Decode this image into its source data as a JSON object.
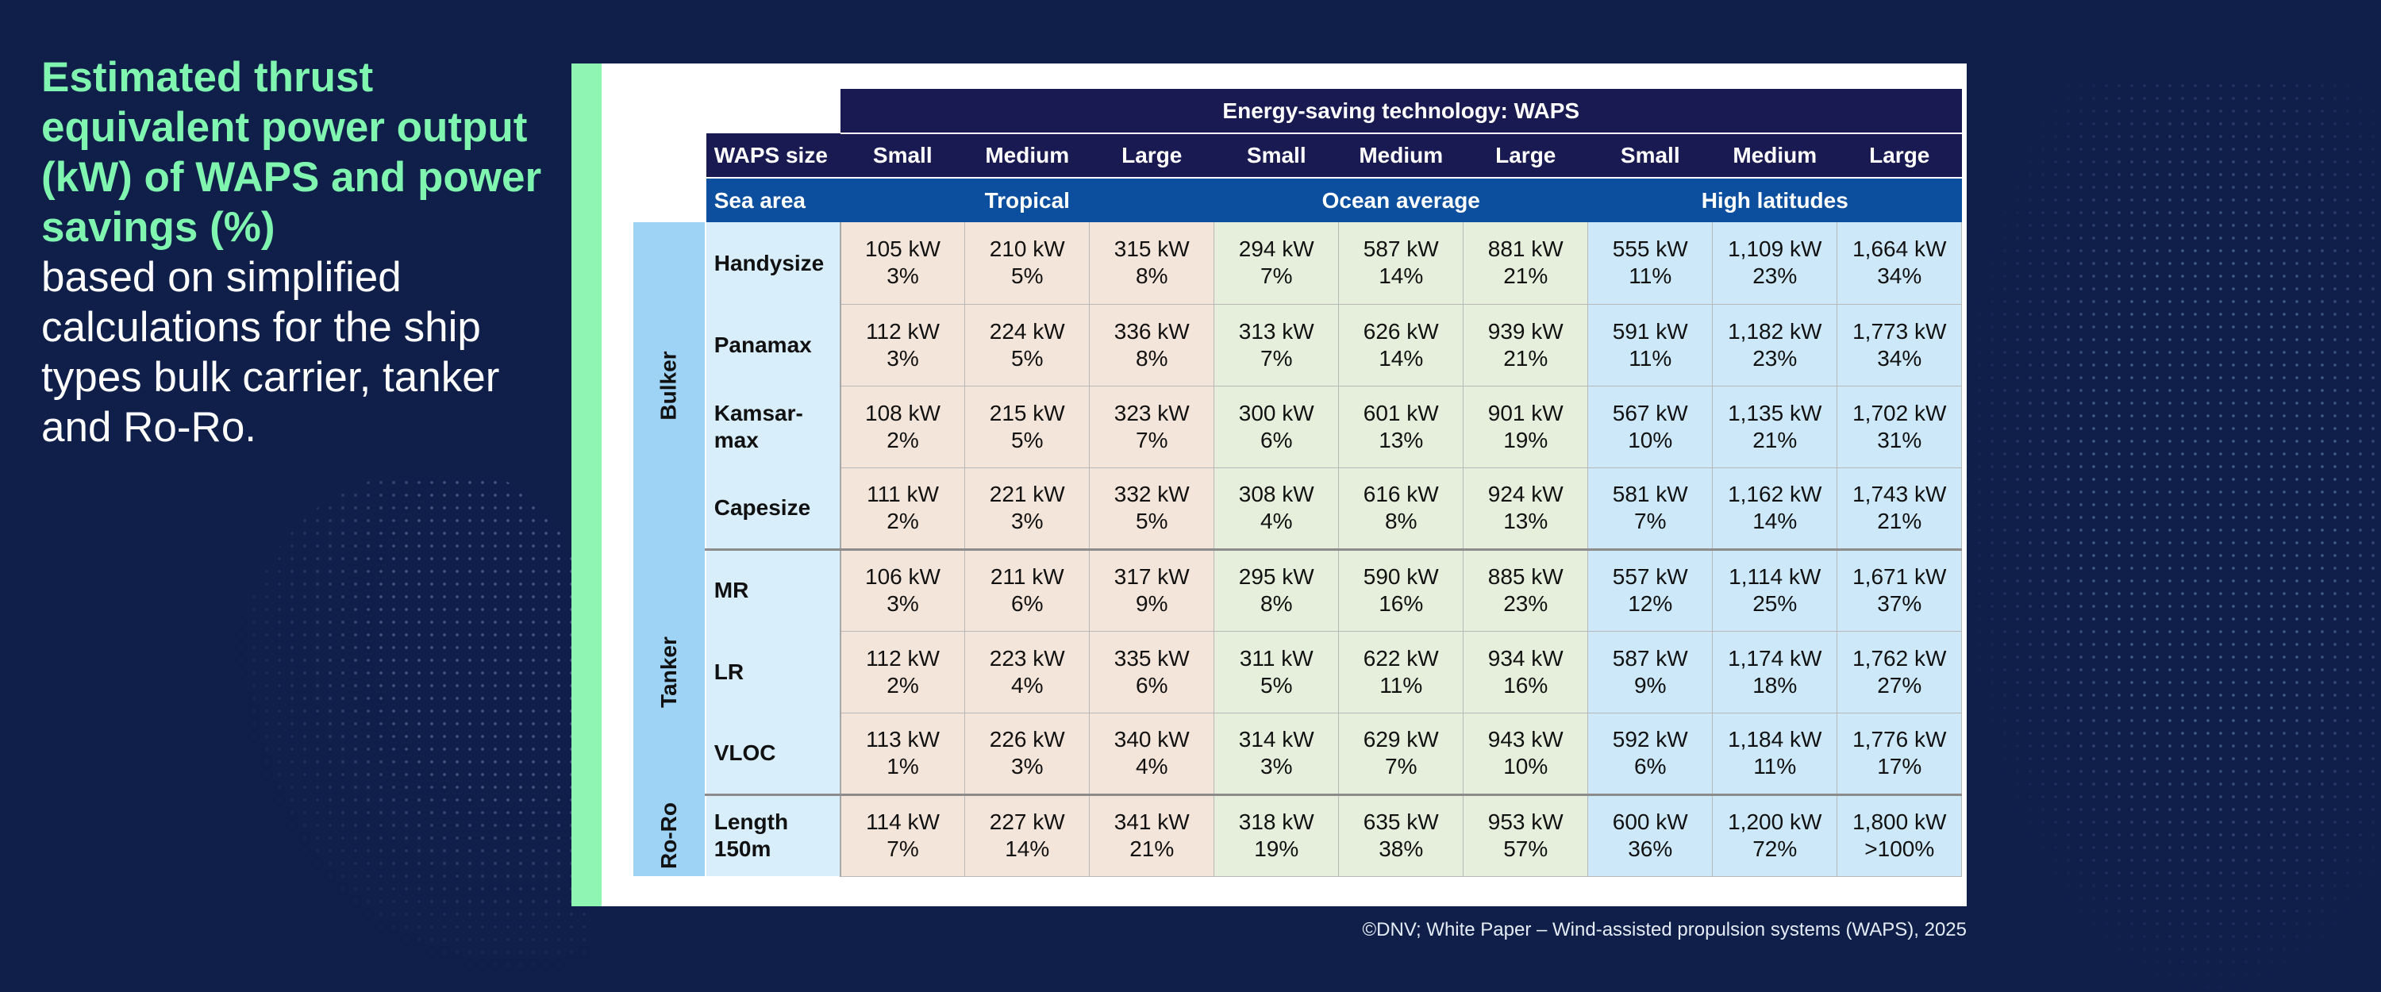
{
  "headline": {
    "highlight": "Estimated thrust equivalent power output (kW) of WAPS and power savings (%)",
    "rest": "based on simplified calculations for the ship types bulk carrier, tanker and Ro-Ro."
  },
  "table": {
    "tech_header": "Energy-saving technology: WAPS",
    "size_label": "WAPS size",
    "sizes": [
      "Small",
      "Medium",
      "Large",
      "Small",
      "Medium",
      "Large",
      "Small",
      "Medium",
      "Large"
    ],
    "sea_label": "Sea area",
    "sea_areas": [
      "Tropical",
      "Ocean average",
      "High latitudes"
    ],
    "groups": [
      {
        "name": "Bulker",
        "rows": [
          {
            "ship": "Handysize",
            "cells": [
              [
                "105 kW",
                "3%"
              ],
              [
                "210 kW",
                "5%"
              ],
              [
                "315 kW",
                "8%"
              ],
              [
                "294 kW",
                "7%"
              ],
              [
                "587 kW",
                "14%"
              ],
              [
                "881 kW",
                "21%"
              ],
              [
                "555 kW",
                "11%"
              ],
              [
                "1,109 kW",
                "23%"
              ],
              [
                "1,664 kW",
                "34%"
              ]
            ]
          },
          {
            "ship": "Panamax",
            "cells": [
              [
                "112 kW",
                "3%"
              ],
              [
                "224 kW",
                "5%"
              ],
              [
                "336 kW",
                "8%"
              ],
              [
                "313 kW",
                "7%"
              ],
              [
                "626 kW",
                "14%"
              ],
              [
                "939 kW",
                "21%"
              ],
              [
                "591 kW",
                "11%"
              ],
              [
                "1,182 kW",
                "23%"
              ],
              [
                "1,773 kW",
                "34%"
              ]
            ]
          },
          {
            "ship": "Kamsar-\nmax",
            "cells": [
              [
                "108 kW",
                "2%"
              ],
              [
                "215 kW",
                "5%"
              ],
              [
                "323 kW",
                "7%"
              ],
              [
                "300 kW",
                "6%"
              ],
              [
                "601 kW",
                "13%"
              ],
              [
                "901 kW",
                "19%"
              ],
              [
                "567 kW",
                "10%"
              ],
              [
                "1,135 kW",
                "21%"
              ],
              [
                "1,702 kW",
                "31%"
              ]
            ]
          },
          {
            "ship": "Capesize",
            "cells": [
              [
                "111 kW",
                "2%"
              ],
              [
                "221 kW",
                "3%"
              ],
              [
                "332 kW",
                "5%"
              ],
              [
                "308 kW",
                "4%"
              ],
              [
                "616 kW",
                "8%"
              ],
              [
                "924 kW",
                "13%"
              ],
              [
                "581 kW",
                "7%"
              ],
              [
                "1,162 kW",
                "14%"
              ],
              [
                "1,743 kW",
                "21%"
              ]
            ]
          }
        ]
      },
      {
        "name": "Tanker",
        "rows": [
          {
            "ship": "MR",
            "cells": [
              [
                "106 kW",
                "3%"
              ],
              [
                "211 kW",
                "6%"
              ],
              [
                "317 kW",
                "9%"
              ],
              [
                "295 kW",
                "8%"
              ],
              [
                "590 kW",
                "16%"
              ],
              [
                "885 kW",
                "23%"
              ],
              [
                "557 kW",
                "12%"
              ],
              [
                "1,114 kW",
                "25%"
              ],
              [
                "1,671 kW",
                "37%"
              ]
            ]
          },
          {
            "ship": "LR",
            "cells": [
              [
                "112 kW",
                "2%"
              ],
              [
                "223 kW",
                "4%"
              ],
              [
                "335 kW",
                "6%"
              ],
              [
                "311 kW",
                "5%"
              ],
              [
                "622 kW",
                "11%"
              ],
              [
                "934 kW",
                "16%"
              ],
              [
                "587 kW",
                "9%"
              ],
              [
                "1,174 kW",
                "18%"
              ],
              [
                "1,762 kW",
                "27%"
              ]
            ]
          },
          {
            "ship": "VLOC",
            "cells": [
              [
                "113 kW",
                "1%"
              ],
              [
                "226 kW",
                "3%"
              ],
              [
                "340 kW",
                "4%"
              ],
              [
                "314 kW",
                "3%"
              ],
              [
                "629 kW",
                "7%"
              ],
              [
                "943 kW",
                "10%"
              ],
              [
                "592 kW",
                "6%"
              ],
              [
                "1,184 kW",
                "11%"
              ],
              [
                "1,776 kW",
                "17%"
              ]
            ]
          }
        ]
      },
      {
        "name": "Ro-Ro",
        "rows": [
          {
            "ship": "Length\n150m",
            "cells": [
              [
                "114 kW",
                "7%"
              ],
              [
                "227 kW",
                "14%"
              ],
              [
                "341 kW",
                "21%"
              ],
              [
                "318 kW",
                "19%"
              ],
              [
                "635 kW",
                "38%"
              ],
              [
                "953 kW",
                "57%"
              ],
              [
                "600 kW",
                "36%"
              ],
              [
                "1,200 kW",
                "72%"
              ],
              [
                "1,800 kW",
                ">100%"
              ]
            ]
          }
        ]
      }
    ]
  },
  "source": "©DNV; White Paper – Wind-assisted propulsion systems (WAPS), 2025",
  "colors": {
    "background": "#0f1f4a",
    "headline_accent": "#7ff5b0",
    "panel_accent": "#8ff5b3",
    "header_dark": "#1a1a52",
    "header_blue": "#0c4f9e",
    "group_band": "#9fd3f6",
    "ship_cell": "#d9eefb",
    "tropical": "#f4e5da",
    "ocean_average": "#e5efdc",
    "high_latitudes": "#cde8f9"
  }
}
